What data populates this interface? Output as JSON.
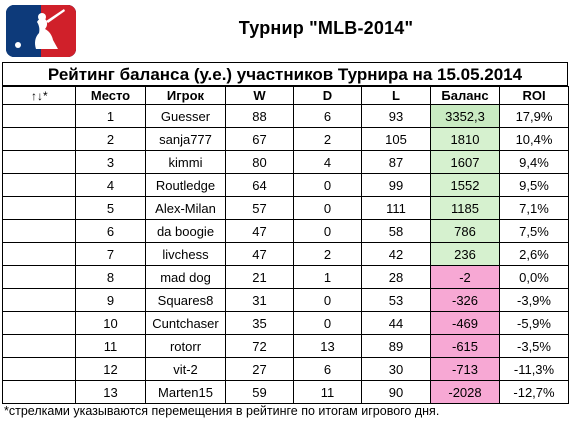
{
  "header": {
    "logo_icon": "mlb-logo-icon",
    "title": "Турнир \"MLB-2014\""
  },
  "subtitle": "Рейтинг баланса (у.е.) участников Турнира на 15.05.2014",
  "table": {
    "columns": {
      "arrows": "↑↓*",
      "place": "Место",
      "player": "Игрок",
      "w": "W",
      "d": "D",
      "l": "L",
      "balance": "Баланс",
      "roi": "ROI"
    },
    "rows": [
      {
        "arrow": "",
        "place": "1",
        "player": "Guesser",
        "w": "88",
        "d": "6",
        "l": "93",
        "balance": "3352,3",
        "roi": "17,9%",
        "sign": "pos"
      },
      {
        "arrow": "",
        "place": "2",
        "player": "sanja777",
        "w": "67",
        "d": "2",
        "l": "105",
        "balance": "1810",
        "roi": "10,4%",
        "sign": "pos"
      },
      {
        "arrow": "",
        "place": "3",
        "player": "kimmi",
        "w": "80",
        "d": "4",
        "l": "87",
        "balance": "1607",
        "roi": "9,4%",
        "sign": "pos"
      },
      {
        "arrow": "",
        "place": "4",
        "player": "Routledge",
        "w": "64",
        "d": "0",
        "l": "99",
        "balance": "1552",
        "roi": "9,5%",
        "sign": "pos"
      },
      {
        "arrow": "",
        "place": "5",
        "player": "Alex-Milan",
        "w": "57",
        "d": "0",
        "l": "111",
        "balance": "1185",
        "roi": "7,1%",
        "sign": "pos"
      },
      {
        "arrow": "",
        "place": "6",
        "player": "da boogie",
        "w": "47",
        "d": "0",
        "l": "58",
        "balance": "786",
        "roi": "7,5%",
        "sign": "pos"
      },
      {
        "arrow": "",
        "place": "7",
        "player": "livchess",
        "w": "47",
        "d": "2",
        "l": "42",
        "balance": "236",
        "roi": "2,6%",
        "sign": "pos"
      },
      {
        "arrow": "",
        "place": "8",
        "player": "mad dog",
        "w": "21",
        "d": "1",
        "l": "28",
        "balance": "-2",
        "roi": "0,0%",
        "sign": "neg"
      },
      {
        "arrow": "",
        "place": "9",
        "player": "Squares8",
        "w": "31",
        "d": "0",
        "l": "53",
        "balance": "-326",
        "roi": "-3,9%",
        "sign": "neg"
      },
      {
        "arrow": "",
        "place": "10",
        "player": "Cuntchaser",
        "w": "35",
        "d": "0",
        "l": "44",
        "balance": "-469",
        "roi": "-5,9%",
        "sign": "neg"
      },
      {
        "arrow": "",
        "place": "11",
        "player": "rotorr",
        "w": "72",
        "d": "13",
        "l": "89",
        "balance": "-615",
        "roi": "-3,5%",
        "sign": "neg"
      },
      {
        "arrow": "",
        "place": "12",
        "player": "vit-2",
        "w": "27",
        "d": "6",
        "l": "30",
        "balance": "-713",
        "roi": "-11,3%",
        "sign": "neg"
      },
      {
        "arrow": "",
        "place": "13",
        "player": "Marten15",
        "w": "59",
        "d": "11",
        "l": "90",
        "balance": "-2028",
        "roi": "-12,7%",
        "sign": "neg"
      }
    ]
  },
  "footnote": "*стрелками указываются перемещения в рейтинге по итогам игрового дня.",
  "colors": {
    "positive_balance": "#d6f1cf",
    "negative_balance": "#f7a8d4",
    "logo_blue": "#0d3a7a",
    "logo_red": "#d0202a"
  }
}
